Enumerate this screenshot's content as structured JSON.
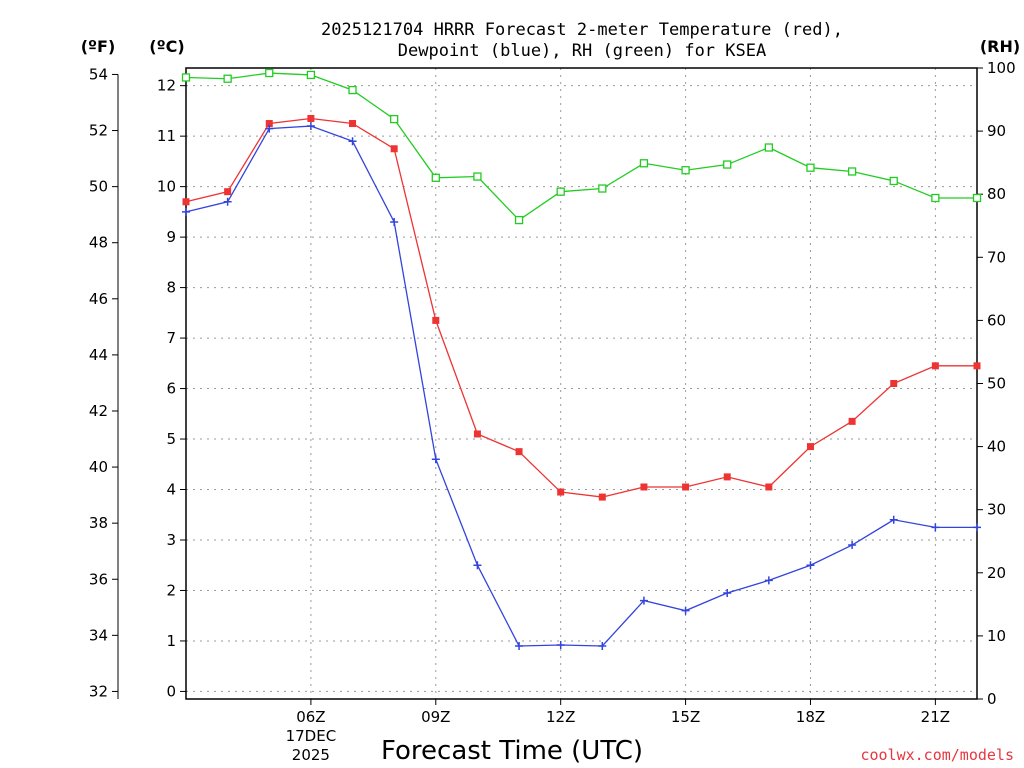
{
  "chart_data": {
    "type": "line",
    "title_line1": "2025121704 HRRR Forecast 2-meter Temperature (red),",
    "title_line2": "Dewpoint (blue), RH (green) for KSEA",
    "xlabel": "Forecast Time (UTC)",
    "credit": "coolwx.com/models",
    "unit_left_f": "(ºF)",
    "unit_left_c": "(ºC)",
    "unit_right": "(RH)",
    "x_hours": [
      3,
      4,
      5,
      6,
      7,
      8,
      9,
      10,
      11,
      12,
      13,
      14,
      15,
      16,
      17,
      18,
      19,
      20,
      21,
      22
    ],
    "x_range": [
      3,
      22
    ],
    "x_ticks": [
      {
        "hour": 6,
        "label": "06Z",
        "date": "17DEC",
        "year": "2025"
      },
      {
        "hour": 9,
        "label": "09Z"
      },
      {
        "hour": 12,
        "label": "12Z"
      },
      {
        "hour": 15,
        "label": "15Z"
      },
      {
        "hour": 18,
        "label": "18Z"
      },
      {
        "hour": 21,
        "label": "21Z"
      }
    ],
    "y_celsius": {
      "range": [
        -0.15,
        12.35
      ],
      "ticks": [
        0,
        1,
        2,
        3,
        4,
        5,
        6,
        7,
        8,
        9,
        10,
        11,
        12
      ]
    },
    "y_fahrenheit_ticks": [
      32,
      34,
      36,
      38,
      40,
      42,
      44,
      46,
      48,
      50,
      52,
      54
    ],
    "y_rh": {
      "range": [
        0,
        100
      ],
      "ticks": [
        0,
        10,
        20,
        30,
        40,
        50,
        60,
        70,
        80,
        90,
        100
      ]
    },
    "series": [
      {
        "name": "Temperature",
        "axis": "celsius",
        "color": "#ee3333",
        "marker": "filled-square",
        "values": [
          9.7,
          9.9,
          11.25,
          11.35,
          11.25,
          10.75,
          7.35,
          5.1,
          4.75,
          3.95,
          3.85,
          4.05,
          4.05,
          4.25,
          4.05,
          4.85,
          5.35,
          6.1,
          6.45,
          6.45
        ]
      },
      {
        "name": "Dewpoint",
        "axis": "celsius",
        "color": "#3344dd",
        "marker": "plus",
        "values": [
          9.5,
          9.7,
          11.15,
          11.2,
          10.9,
          9.3,
          4.6,
          2.5,
          0.9,
          0.92,
          0.9,
          1.8,
          1.6,
          1.95,
          2.2,
          2.5,
          2.9,
          3.4,
          3.25,
          3.25
        ]
      },
      {
        "name": "RH",
        "axis": "rh",
        "color": "#22cc22",
        "marker": "open-square",
        "values": [
          98.5,
          98.3,
          99.2,
          98.9,
          96.5,
          91.9,
          82.6,
          82.8,
          75.9,
          80.4,
          80.9,
          84.9,
          83.8,
          84.7,
          87.4,
          84.2,
          83.6,
          82.1,
          79.4,
          79.4
        ]
      }
    ]
  }
}
